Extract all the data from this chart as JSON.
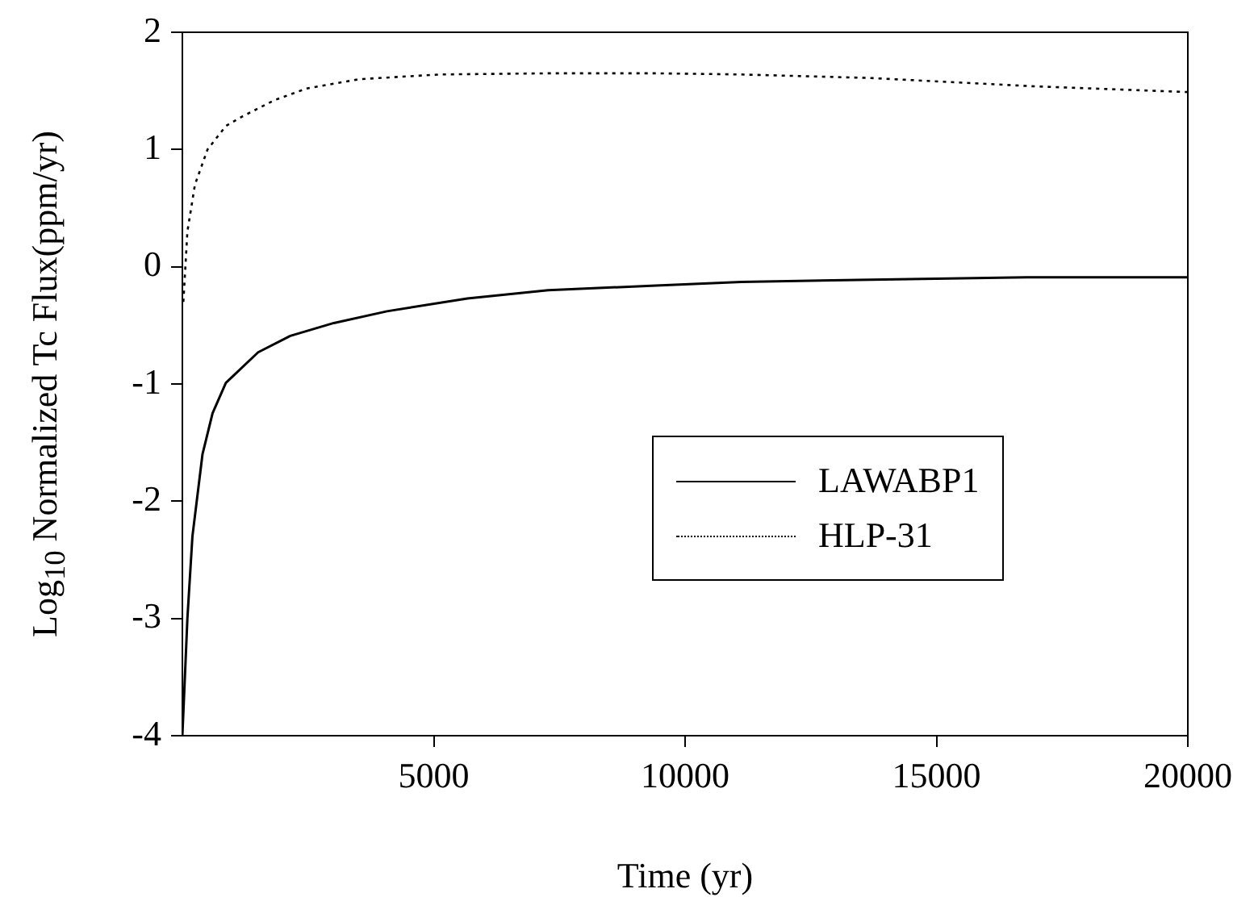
{
  "chart_data": {
    "type": "line",
    "xlabel": "Time (yr)",
    "ylabel": "Log$_{10}$ Normalized Tc Flux(ppm/yr)",
    "xlim": [
      0,
      20000
    ],
    "xticks": [
      5000,
      10000,
      15000,
      20000
    ],
    "ylim": [
      -4,
      2
    ],
    "yticks": [
      -4,
      -3,
      -2,
      -1,
      0,
      1,
      2
    ],
    "grid": false,
    "legend": "bottom right",
    "marker": "none",
    "series": [
      {
        "name": "LAWABP1",
        "color": "#000000",
        "line_style": "solid",
        "x": [
          0,
          100,
          200,
          400,
          600,
          865,
          1506,
          2147,
          3013,
          4070,
          5670,
          7276,
          9420,
          11120,
          13690,
          16890,
          20000
        ],
        "values": [
          -4,
          -3,
          -2.3,
          -1.6,
          -1.25,
          -0.99,
          -0.73,
          -0.59,
          -0.48,
          -0.38,
          -0.27,
          -0.2,
          -0.16,
          -0.13,
          -0.11,
          -0.09,
          -0.09
        ]
      },
      {
        "name": "HLP-31",
        "color": "#000000",
        "line_style": "dotted",
        "x": [
          20,
          100,
          250,
          500,
          865,
          1186,
          1827,
          2468,
          3526,
          5128,
          7276,
          9420,
          11120,
          13690,
          16890,
          20000
        ],
        "values": [
          -0.3,
          0.3,
          0.7,
          1.0,
          1.2,
          1.28,
          1.42,
          1.52,
          1.6,
          1.64,
          1.65,
          1.65,
          1.64,
          1.61,
          1.54,
          1.49
        ]
      }
    ]
  }
}
